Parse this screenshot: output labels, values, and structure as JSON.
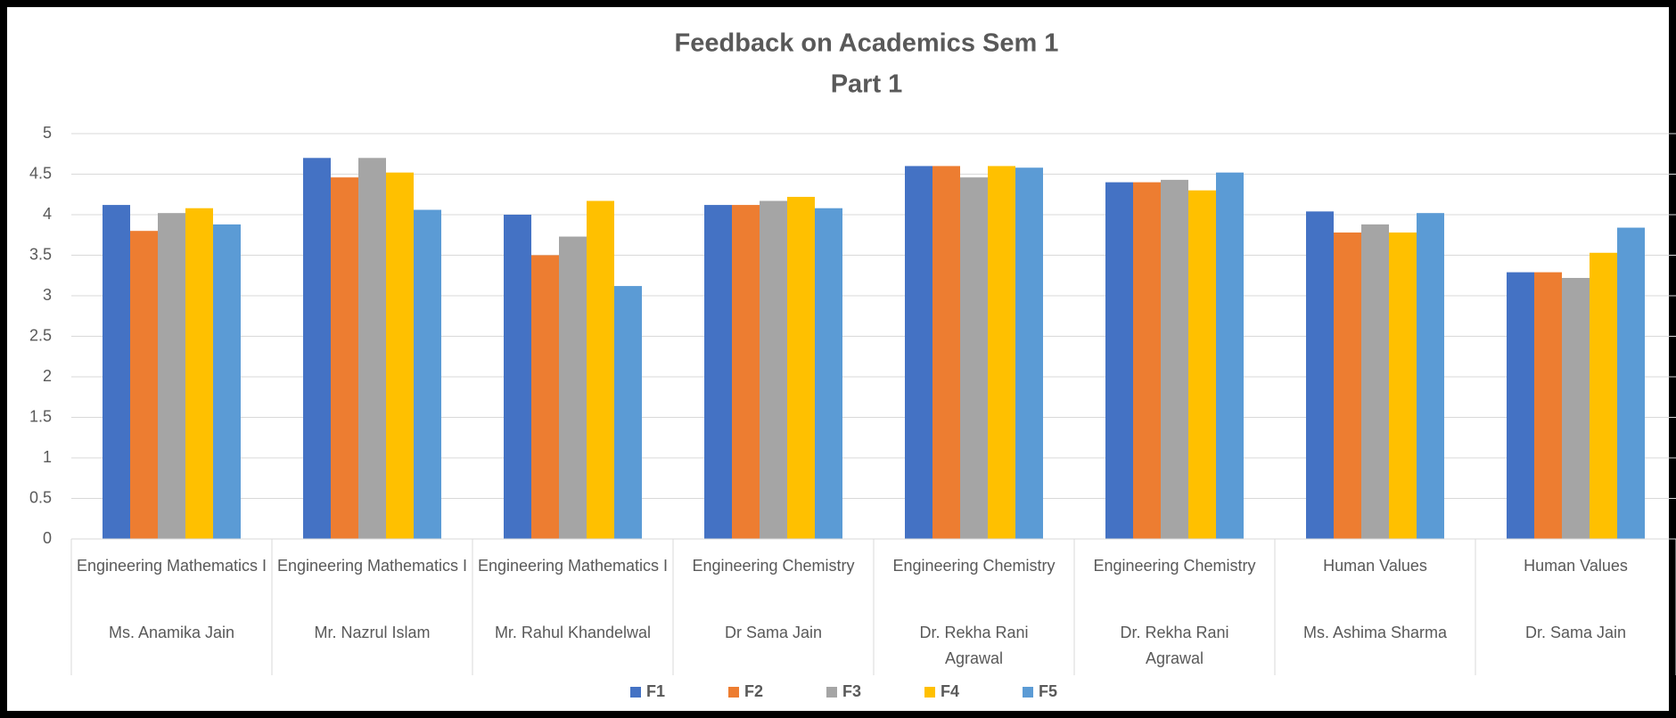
{
  "chart_data": {
    "type": "bar",
    "title": "Feedback on Academics Sem 1",
    "subtitle": "Part 1",
    "categories": [
      {
        "subject": "Engineering Mathematics I",
        "teacher": "Ms. Anamika Jain"
      },
      {
        "subject": "Engineering Mathematics I",
        "teacher": "Mr. Nazrul Islam"
      },
      {
        "subject": "Engineering Mathematics I",
        "teacher": "Mr. Rahul Khandelwal"
      },
      {
        "subject": "Engineering Chemistry",
        "teacher": "Dr Sama Jain"
      },
      {
        "subject": "Engineering Chemistry",
        "teacher": "Dr. Rekha Rani Agrawal"
      },
      {
        "subject": "Engineering Chemistry",
        "teacher": "Dr. Rekha Rani Agrawal"
      },
      {
        "subject": "Human Values",
        "teacher": "Ms. Ashima Sharma"
      },
      {
        "subject": "Human Values",
        "teacher": "Dr. Sama Jain"
      }
    ],
    "series": [
      {
        "name": "F1",
        "color": "#4472c4",
        "values": [
          4.12,
          4.7,
          4.0,
          4.12,
          4.6,
          4.4,
          4.04,
          3.29
        ]
      },
      {
        "name": "F2",
        "color": "#ed7d31",
        "values": [
          3.8,
          4.46,
          3.5,
          4.12,
          4.6,
          4.4,
          3.78,
          3.29
        ]
      },
      {
        "name": "F3",
        "color": "#a5a5a5",
        "values": [
          4.02,
          4.7,
          3.73,
          4.17,
          4.46,
          4.43,
          3.88,
          3.22
        ]
      },
      {
        "name": "F4",
        "color": "#ffc000",
        "values": [
          4.08,
          4.52,
          4.17,
          4.22,
          4.6,
          4.3,
          3.78,
          3.53
        ]
      },
      {
        "name": "F5",
        "color": "#5b9bd5",
        "values": [
          3.88,
          4.06,
          3.12,
          4.08,
          4.58,
          4.52,
          4.02,
          3.84
        ]
      }
    ],
    "ylim": [
      0,
      5
    ],
    "yticks": [
      0,
      0.5,
      1,
      1.5,
      2,
      2.5,
      3,
      3.5,
      4,
      4.5,
      5
    ],
    "grid": true,
    "legend": "bottom"
  }
}
